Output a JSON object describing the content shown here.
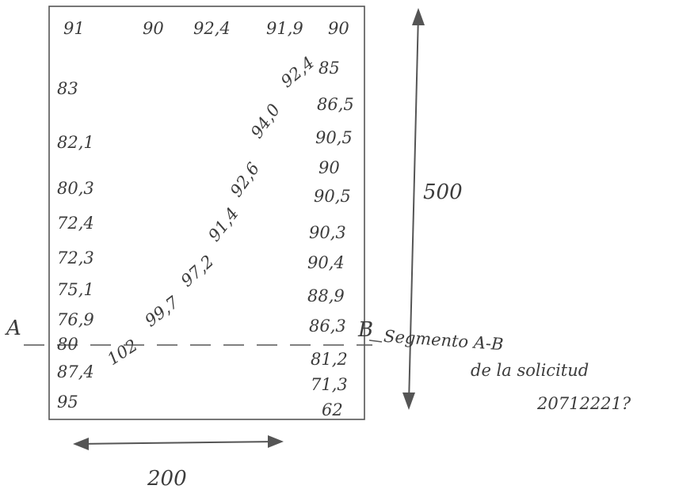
{
  "top_row": [
    "91",
    "90",
    "92,4",
    "91,9",
    "90"
  ],
  "left_column": [
    "83",
    "82,1",
    "80,3",
    "72,4",
    "72,3",
    "75,1",
    "76,9",
    "80",
    "87,4",
    "95"
  ],
  "right_column": [
    "85",
    "86,5",
    "90,5",
    "90",
    "90,5",
    "90,3",
    "90,4",
    "88,9",
    "86,3",
    "81,2",
    "71,3",
    "62"
  ],
  "diagonal": [
    "102",
    "99,7",
    "97,2",
    "91,4",
    "92,6",
    "94,0",
    "92,4"
  ],
  "markers": {
    "point_a": "A",
    "point_b": "B"
  },
  "dimensions": {
    "height": "500",
    "width": "200"
  },
  "note": {
    "line1": "Segmento A-B",
    "line2": "de la solicitud",
    "line3": "20712221?"
  }
}
